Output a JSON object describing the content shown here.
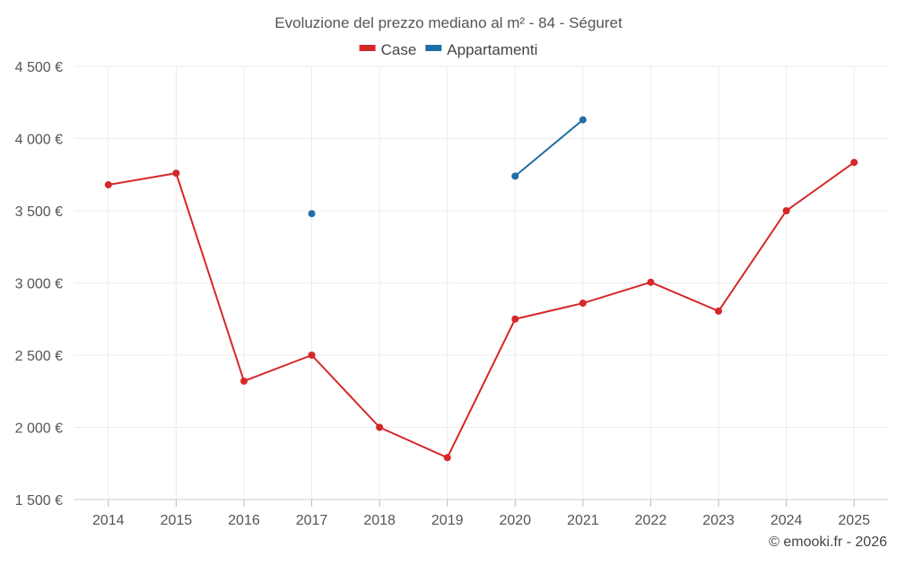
{
  "chart_data": {
    "type": "line",
    "title": "Evoluzione del prezzo mediano al m² - 84 - Séguret",
    "xlabel": "",
    "ylabel": "",
    "categories": [
      "2014",
      "2015",
      "2016",
      "2017",
      "2018",
      "2019",
      "2020",
      "2021",
      "2022",
      "2023",
      "2024",
      "2025"
    ],
    "ylim": [
      1500,
      4500
    ],
    "y_ticks": [
      1500,
      2000,
      2500,
      3000,
      3500,
      4000,
      4500
    ],
    "y_tick_labels": [
      "1 500 €",
      "2 000 €",
      "2 500 €",
      "3 000 €",
      "3 500 €",
      "4 000 €",
      "4 500 €"
    ],
    "grid": true,
    "legend_position": "top-center",
    "series": [
      {
        "name": "Case",
        "color": "#d62728",
        "values": [
          3680,
          3760,
          2320,
          2500,
          2000,
          1790,
          2750,
          2860,
          3005,
          2805,
          3500,
          3835
        ]
      },
      {
        "name": "Appartamenti",
        "color": "#1f6fa3",
        "values": [
          null,
          null,
          null,
          3480,
          null,
          null,
          3740,
          4130,
          null,
          null,
          null,
          null
        ]
      }
    ],
    "credit": "© emooki.fr - 2026"
  }
}
